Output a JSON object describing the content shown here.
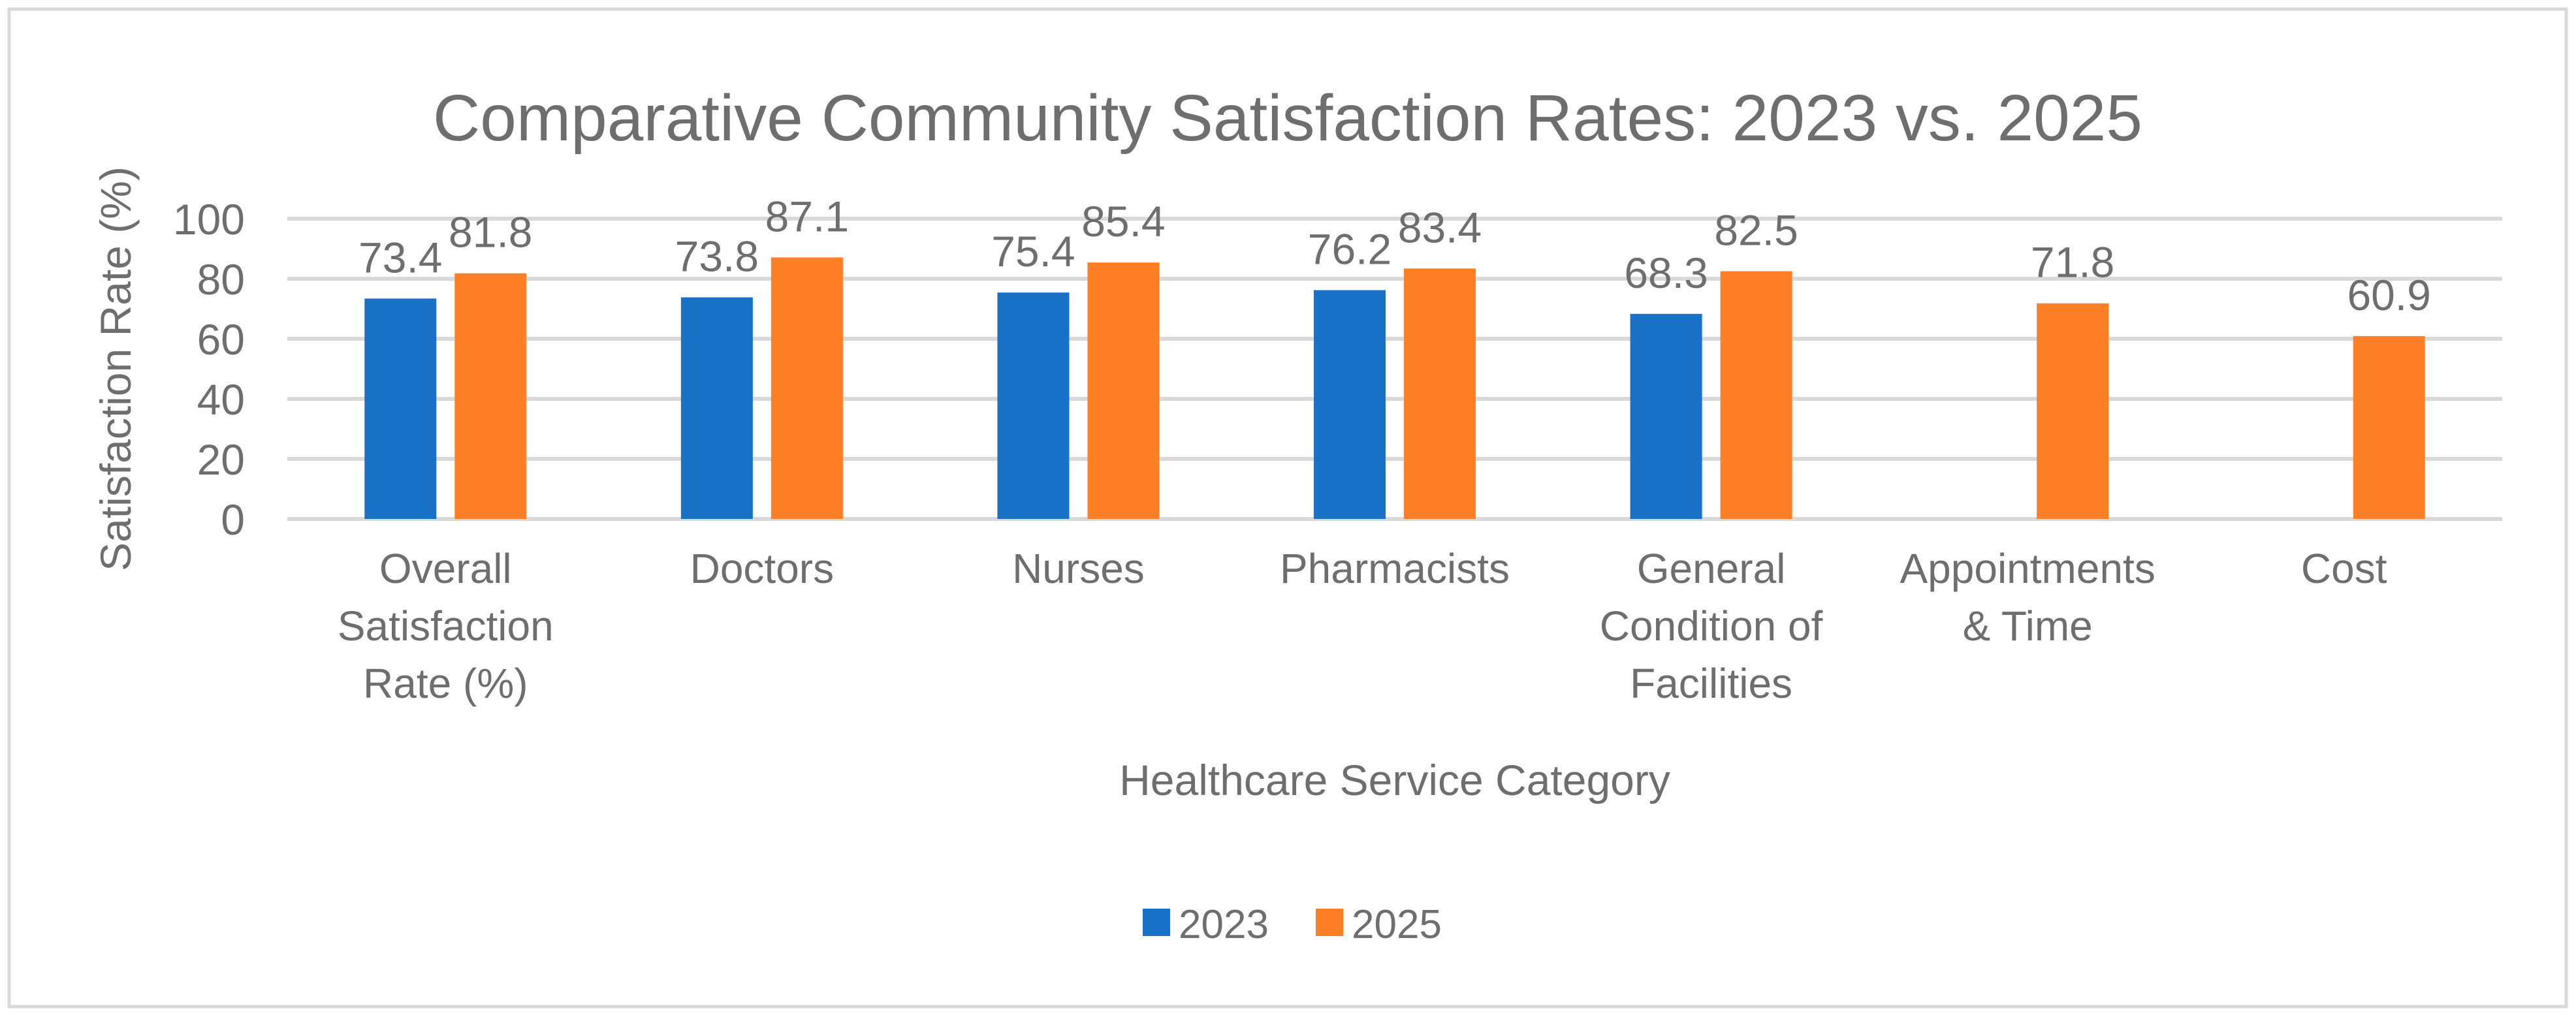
{
  "chart_data": {
    "type": "bar",
    "title": "Comparative Community Satisfaction Rates: 2023 vs. 2025",
    "xlabel": "Healthcare Service Category",
    "ylabel": "Satisfaction Rate (%)",
    "ylim": [
      0,
      100
    ],
    "yticks": [
      0,
      20,
      40,
      60,
      80,
      100
    ],
    "grid": true,
    "legend_position": "bottom",
    "categories": [
      [
        "Overall",
        "Satisfaction",
        "Rate (%)"
      ],
      [
        "Doctors"
      ],
      [
        "Nurses"
      ],
      [
        "Pharmacists"
      ],
      [
        "General",
        "Condition of",
        "Facilities"
      ],
      [
        "Appointments",
        "& Time"
      ],
      [
        "Cost"
      ]
    ],
    "series": [
      {
        "name": "2023",
        "color": "#1A72C7",
        "values": [
          73.4,
          73.8,
          75.4,
          76.2,
          68.3,
          null,
          null
        ]
      },
      {
        "name": "2025",
        "color": "#FE7F26",
        "values": [
          81.8,
          87.1,
          85.4,
          83.4,
          82.5,
          71.8,
          60.9
        ]
      }
    ]
  }
}
